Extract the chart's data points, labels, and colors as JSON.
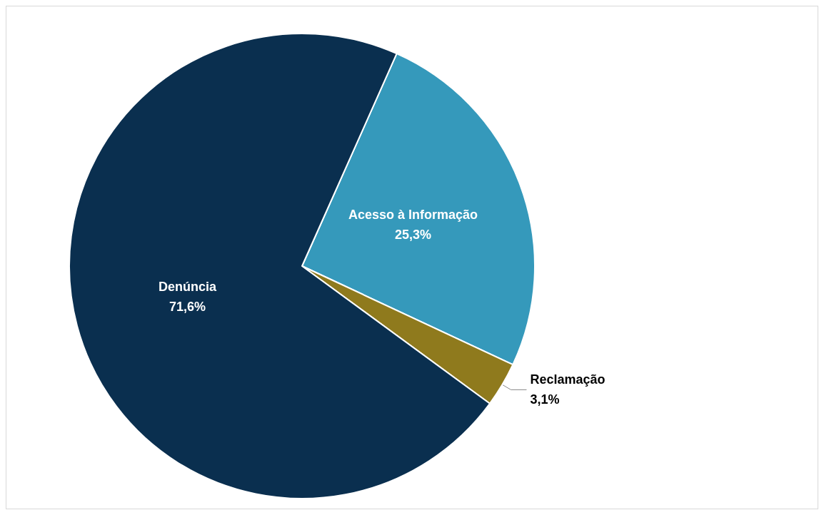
{
  "chart_data": {
    "type": "pie",
    "categories": [
      "Acesso à Informação",
      "Reclamação",
      "Denúncia"
    ],
    "values": [
      25.3,
      3.1,
      71.6
    ],
    "colors": [
      "#3599bb",
      "#8f7a1d",
      "#0a2f4f"
    ],
    "value_labels": [
      "25,3%",
      "3,1%",
      "71,6%"
    ],
    "legend": false
  }
}
